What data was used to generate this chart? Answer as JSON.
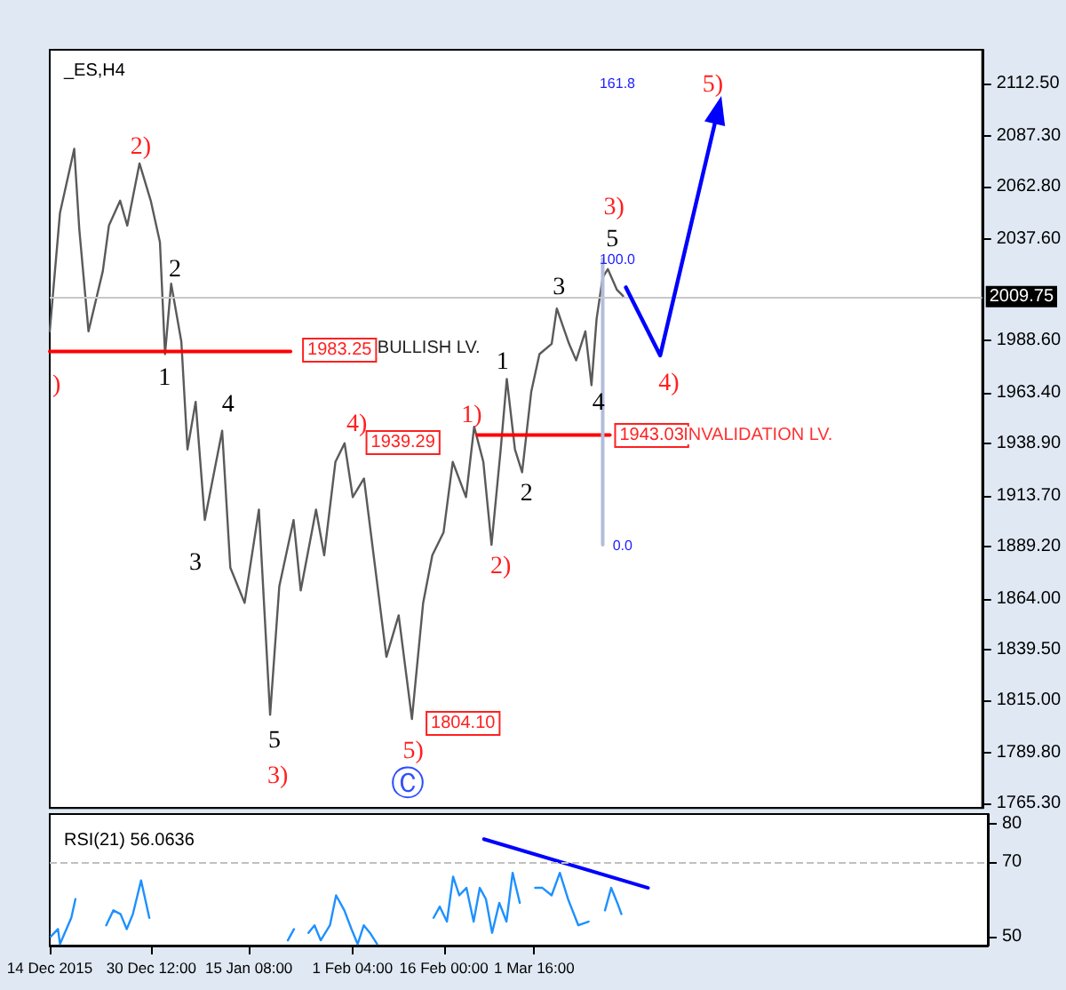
{
  "chart_data": [
    {
      "type": "line",
      "title": "_ES,H4",
      "xlim": [
        "2015-12-14T00:00",
        "2016-05-14T08:00"
      ],
      "ylim": [
        1763,
        2128.8
      ],
      "yticks": [
        {
          "value": 2112.5,
          "label": "2112.50"
        },
        {
          "value": 2087.3,
          "label": "2087.30"
        },
        {
          "value": 2062.8,
          "label": "2062.80"
        },
        {
          "value": 2037.6,
          "label": "2037.60"
        },
        {
          "value": 1988.6,
          "label": "1988.60"
        },
        {
          "value": 1963.4,
          "label": "1963.40"
        },
        {
          "value": 1938.9,
          "label": "1938.90"
        },
        {
          "value": 1913.7,
          "label": "1913.70"
        },
        {
          "value": 1889.2,
          "label": "1889.20"
        },
        {
          "value": 1864,
          "label": "1864.00"
        },
        {
          "value": 1839.5,
          "label": "1839.50"
        },
        {
          "value": 1815,
          "label": "1815.00"
        },
        {
          "value": 1789.8,
          "label": "1789.80"
        },
        {
          "value": 1765.3,
          "label": "1765.30"
        }
      ],
      "tick_labels": "y",
      "grid": false,
      "marker": "none",
      "line_style": "solid",
      "series": [
        {
          "color": "#5a5a5a",
          "x": [
            "2015-12-14T00:00",
            "2015-12-15T16:00",
            "2015-12-18T00:00",
            "2015-12-18T20:00",
            "2015-12-20T08:00",
            "2015-12-22T16:00",
            "2015-12-23T16:00",
            "2015-12-25T12:00",
            "2015-12-26T16:00",
            "2015-12-28T16:00",
            "2015-12-30T12:00",
            "2016-01-01T00:00",
            "2016-01-01T20:00",
            "2016-01-02T20:00",
            "2016-01-04T12:00",
            "2016-01-05T12:00",
            "2016-01-06T20:00",
            "2016-01-08T08:00",
            "2016-01-11T04:00",
            "2016-01-12T12:00",
            "2016-01-14T20:00",
            "2016-01-17T04:00",
            "2016-01-19T00:00",
            "2016-01-20T12:00",
            "2016-01-22T20:00",
            "2016-01-24T00:00",
            "2016-01-26T12:00",
            "2016-01-27T20:00",
            "2016-01-29T16:00",
            "2016-01-31T04:00",
            "2016-02-01T12:00",
            "2016-02-03T08:00",
            "2016-02-05T04:00",
            "2016-02-07T00:00",
            "2016-02-09T00:00",
            "2016-02-11T04:00",
            "2016-02-13T00:00",
            "2016-02-14T12:00",
            "2016-02-16T08:00",
            "2016-02-17T20:00",
            "2016-02-20T00:00",
            "2016-02-21T08:00",
            "2016-02-22T20:00",
            "2016-02-24T04:00",
            "2016-02-25T16:00",
            "2016-02-26T16:00",
            "2016-02-28T00:00",
            "2016-02-29T04:00",
            "2016-03-01T16:00",
            "2016-03-03T00:00",
            "2016-03-05T00:00",
            "2016-03-05T20:00",
            "2016-03-07T20:00",
            "2016-03-09T00:00",
            "2016-03-10T12:00",
            "2016-03-11T12:00",
            "2016-03-12T08:00",
            "2016-03-13T08:00",
            "2016-03-14T04:00",
            "2016-03-15T16:00",
            "2016-03-16T16:00"
          ],
          "values": [
            1993,
            2050,
            2081,
            2042,
            1993,
            2022,
            2044,
            2056,
            2044,
            2074,
            2056,
            2036,
            1982,
            2016,
            1988,
            1936,
            1959,
            1902,
            1945,
            1879,
            1862,
            1907,
            1808,
            1870,
            1902,
            1868,
            1907,
            1885,
            1930,
            1939,
            1913,
            1922,
            1879,
            1836,
            1856,
            1806,
            1862,
            1885,
            1896,
            1930,
            1913,
            1947,
            1930,
            1890,
            1936,
            1970,
            1936,
            1925,
            1964,
            1982,
            1987,
            2004,
            1987,
            1979,
            1993,
            1967,
            1999,
            2019,
            2023,
            2013,
            2010
          ]
        },
        {
          "type": "line",
          "color": "#ff0000",
          "x": [
            "2015-12-14T00:00",
            "2016-01-22T08:00"
          ],
          "values": [
            1983.25,
            1983.25
          ]
        },
        {
          "type": "line",
          "color": "#ff0000",
          "x": [
            "2016-02-21T20:00",
            "2016-03-14T12:00"
          ],
          "values": [
            1943.03,
            1943.03
          ]
        },
        {
          "type": "line",
          "color": "#b4bcdc",
          "x": [
            "2016-03-13T08:00",
            "2016-03-13T08:00"
          ],
          "values": [
            1890,
            2028
          ]
        }
      ],
      "ref_lines": [
        {
          "axis": "y",
          "value": 2009.75,
          "label": "2009.75",
          "color": "#c8c8c8"
        }
      ],
      "annotations": [
        ")",
        "2)",
        "2",
        "1",
        "4",
        "3",
        "5",
        "3)",
        "4)",
        "1939.29",
        "5)",
        "Ⓒ",
        "1804.10",
        "1)",
        "2)",
        "1",
        "2",
        "3",
        "4",
        "5",
        "3)",
        "4)",
        {
          "text": "5)",
          "x": "2016-03-31T08:00",
          "y": 2098
        },
        "161.8",
        "100.0",
        "0.0",
        "1983.25",
        "BULLISH LV.",
        "1943.03",
        "INVALIDATION LV."
      ]
    },
    {
      "type": "line",
      "title": "RSI(21) 56.0636",
      "xlim": [
        "2015-12-14T00:00",
        "2016-05-14T08:00"
      ],
      "xticks": [
        {
          "value": "2015-12-14T00:00",
          "label": "14 Dec 2015"
        },
        {
          "value": "2015-12-30T12:00",
          "label": "30 Dec 12:00"
        },
        {
          "value": "2016-01-15T08:00",
          "label": "15 Jan 08:00"
        },
        {
          "value": "2016-02-01T04:00",
          "label": "1 Feb 04:00"
        },
        {
          "value": "2016-02-16T00:00",
          "label": "16 Feb 00:00"
        },
        {
          "value": "2016-03-01T16:00",
          "label": "1 Mar 16:00"
        }
      ],
      "ylim": [
        47.6,
        82.7
      ],
      "yticks": [
        80,
        70,
        50
      ],
      "grid": false,
      "marker": "none",
      "line_style": "solid",
      "series": [
        {
          "color": "#1e90ff",
          "x": [
            "2015-12-14T04:00",
            "2015-12-15T08:00",
            "2015-12-15T16:00",
            "2015-12-17T12:00",
            "2015-12-18T04:00",
            "2015-12-18T16:00",
            "2015-12-22T04:00",
            "2015-12-23T04:00",
            "2015-12-24T08:00",
            "2015-12-25T12:00",
            "2015-12-26T12:00",
            "2015-12-27T12:00",
            "2015-12-28T20:00",
            "2015-12-30T04:00",
            "2015-12-31T08:00",
            "2016-01-21T16:00",
            "2016-01-22T16:00",
            "2016-01-23T16:00",
            "2016-01-25T00:00",
            "2016-01-26T00:00",
            "2016-01-27T00:00",
            "2016-01-28T12:00",
            "2016-01-29T12:00",
            "2016-01-30T20:00",
            "2016-02-01T00:00",
            "2016-02-02T00:00",
            "2016-02-03T00:00",
            "2016-02-04T00:00",
            "2016-02-05T04:00",
            "2016-02-13T08:00",
            "2016-02-14T08:00",
            "2016-02-15T08:00",
            "2016-02-16T12:00",
            "2016-02-17T12:00",
            "2016-02-18T12:00",
            "2016-02-19T16:00",
            "2016-02-20T20:00",
            "2016-02-21T20:00",
            "2016-02-22T20:00",
            "2016-02-23T20:00",
            "2016-02-25T00:00",
            "2016-02-26T04:00",
            "2016-02-27T04:00",
            "2016-02-28T08:00",
            "2016-02-29T12:00",
            "2016-03-01T20:00",
            "2016-03-03T00:00",
            "2016-03-04T12:00",
            "2016-03-05T20:00",
            "2016-03-07T04:00",
            "2016-03-08T20:00",
            "2016-03-10T12:00",
            "2016-03-12T00:00",
            "2016-03-13T04:00",
            "2016-03-14T04:00",
            "2016-03-15T04:00",
            "2016-03-15T20:00"
          ],
          "values": [
            50,
            52,
            48,
            55,
            60,
            null,
            null,
            53,
            57,
            56,
            52,
            56,
            65,
            55,
            null,
            49,
            52,
            null,
            51,
            53,
            49,
            53,
            61,
            57,
            52,
            48,
            53,
            51,
            48,
            null,
            55,
            58,
            54,
            66,
            61,
            63,
            54,
            63,
            60,
            51,
            59,
            54,
            67,
            59,
            null,
            63,
            63,
            61,
            67,
            60,
            53,
            54,
            null,
            57,
            63,
            59,
            56
          ]
        },
        {
          "type": "line",
          "color": "#0000ff",
          "x": [
            "2016-02-22T12:00",
            "2016-03-20T04:00"
          ],
          "values": [
            76,
            63
          ]
        }
      ],
      "ref_lines": [
        {
          "axis": "y",
          "value": 70,
          "color": "#c0c0c0",
          "line_style": "dashed"
        }
      ]
    }
  ]
}
